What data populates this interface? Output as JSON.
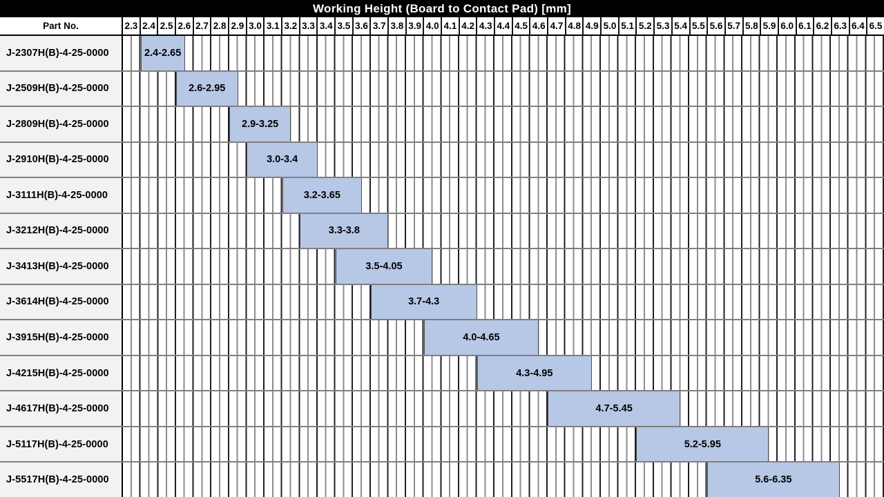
{
  "title": "Working Height (Board to Contact Pad) [mm]",
  "columns": {
    "part_no_header": "Part No."
  },
  "axis": {
    "min": 2.3,
    "max": 6.6,
    "major_step": 0.1,
    "minor_step": 0.05,
    "ticks": [
      "2.3",
      "2.4",
      "2.5",
      "2.6",
      "2.7",
      "2.8",
      "2.9",
      "3.0",
      "3.1",
      "3.2",
      "3.3",
      "3.4",
      "3.5",
      "3.6",
      "3.7",
      "3.8",
      "3.9",
      "4.0",
      "4.1",
      "4.2",
      "4.3",
      "4.4",
      "4.5",
      "4.6",
      "4.7",
      "4.8",
      "4.9",
      "5.0",
      "5.1",
      "5.2",
      "5.3",
      "5.4",
      "5.5",
      "5.6",
      "5.7",
      "5.8",
      "5.9",
      "6.0",
      "6.1",
      "6.2",
      "6.3",
      "6.4",
      "6.5"
    ]
  },
  "colors": {
    "title_bg": "#000000",
    "title_fg": "#ffffff",
    "bar_fill": "#b7c7e6",
    "bar_border": "#4d4d4d",
    "grid_major": "#1f1f1f",
    "grid_minor": "#8c8c8c",
    "row_separator": "#7f7f7f",
    "part_cell_bg": "#f2f2f2"
  },
  "chart_data": {
    "type": "bar",
    "subtype": "horizontal-range",
    "title": "Working Height (Board to Contact Pad) [mm]",
    "xlabel": "Working Height (Board to Contact Pad) [mm]",
    "xlim": [
      2.3,
      6.6
    ],
    "x_major_tick_step": 0.1,
    "x_minor_tick_step": 0.05,
    "grid": "on",
    "legend": "none",
    "categories": [
      "J-2307H(B)-4-25-0000",
      "J-2509H(B)-4-25-0000",
      "J-2809H(B)-4-25-0000",
      "J-2910H(B)-4-25-0000",
      "J-3111H(B)-4-25-0000",
      "J-3212H(B)-4-25-0000",
      "J-3413H(B)-4-25-0000",
      "J-3614H(B)-4-25-0000",
      "J-3915H(B)-4-25-0000",
      "J-4215H(B)-4-25-0000",
      "J-4617H(B)-4-25-0000",
      "J-5117H(B)-4-25-0000",
      "J-5517H(B)-4-25-0000"
    ],
    "bars": [
      {
        "part_no": "J-2307H(B)-4-25-0000",
        "start": 2.4,
        "end": 2.65,
        "label": "2.4-2.65"
      },
      {
        "part_no": "J-2509H(B)-4-25-0000",
        "start": 2.6,
        "end": 2.95,
        "label": "2.6-2.95"
      },
      {
        "part_no": "J-2809H(B)-4-25-0000",
        "start": 2.9,
        "end": 3.25,
        "label": "2.9-3.25"
      },
      {
        "part_no": "J-2910H(B)-4-25-0000",
        "start": 3.0,
        "end": 3.4,
        "label": "3.0-3.4"
      },
      {
        "part_no": "J-3111H(B)-4-25-0000",
        "start": 3.2,
        "end": 3.65,
        "label": "3.2-3.65"
      },
      {
        "part_no": "J-3212H(B)-4-25-0000",
        "start": 3.3,
        "end": 3.8,
        "label": "3.3-3.8"
      },
      {
        "part_no": "J-3413H(B)-4-25-0000",
        "start": 3.5,
        "end": 4.05,
        "label": "3.5-4.05"
      },
      {
        "part_no": "J-3614H(B)-4-25-0000",
        "start": 3.7,
        "end": 4.3,
        "label": "3.7-4.3"
      },
      {
        "part_no": "J-3915H(B)-4-25-0000",
        "start": 4.0,
        "end": 4.65,
        "label": "4.0-4.65"
      },
      {
        "part_no": "J-4215H(B)-4-25-0000",
        "start": 4.3,
        "end": 4.95,
        "label": "4.3-4.95"
      },
      {
        "part_no": "J-4617H(B)-4-25-0000",
        "start": 4.7,
        "end": 5.45,
        "label": "4.7-5.45"
      },
      {
        "part_no": "J-5117H(B)-4-25-0000",
        "start": 5.2,
        "end": 5.95,
        "label": "5.2-5.95"
      },
      {
        "part_no": "J-5517H(B)-4-25-0000",
        "start": 5.6,
        "end": 6.35,
        "label": "5.6-6.35"
      }
    ]
  }
}
